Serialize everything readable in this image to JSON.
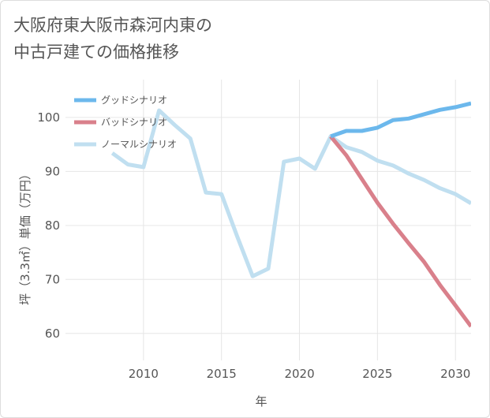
{
  "title_lines": [
    "大阪府東大阪市森河内東の",
    "中古戸建ての価格推移"
  ],
  "chart_data": {
    "type": "line",
    "title": "大阪府東大阪市森河内東の中古戸建ての価格推移",
    "xlabel": "年",
    "ylabel": "坪（3.3㎡）単価（万円）",
    "xlim": [
      2005,
      2031
    ],
    "ylim": [
      55,
      107
    ],
    "xticks": [
      2010,
      2015,
      2020,
      2025,
      2030
    ],
    "yticks": [
      60,
      70,
      80,
      90,
      100
    ],
    "grid": true,
    "legend_position": "top-left",
    "series": [
      {
        "name": "グッドシナリオ",
        "color": "#6cb8ec",
        "x": [
          2022,
          2023,
          2024,
          2025,
          2026,
          2027,
          2028,
          2029,
          2030,
          2031
        ],
        "values": [
          96.5,
          97.5,
          97.5,
          98.1,
          99.5,
          99.8,
          100.6,
          101.4,
          101.9,
          102.6
        ]
      },
      {
        "name": "バッドシナリオ",
        "color": "#d9808b",
        "x": [
          2022,
          2023,
          2024,
          2025,
          2026,
          2027,
          2028,
          2029,
          2030,
          2031
        ],
        "values": [
          96.5,
          93.0,
          88.6,
          84.2,
          80.3,
          76.7,
          73.2,
          69.0,
          65.2,
          61.3
        ]
      },
      {
        "name": "ノーマルシナリオ",
        "color": "#c0dff0",
        "x": [
          2008,
          2009,
          2010,
          2011,
          2012,
          2013,
          2014,
          2015,
          2016,
          2017,
          2018,
          2019,
          2020,
          2021,
          2022,
          2023,
          2024,
          2025,
          2026,
          2027,
          2028,
          2029,
          2030,
          2031
        ],
        "values": [
          93.4,
          91.3,
          90.8,
          101.3,
          98.6,
          96.1,
          86.1,
          85.8,
          78.0,
          70.6,
          72.0,
          91.8,
          92.4,
          90.5,
          96.5,
          94.5,
          93.6,
          92.0,
          91.1,
          89.6,
          88.4,
          86.9,
          85.8,
          84.1
        ]
      }
    ]
  }
}
